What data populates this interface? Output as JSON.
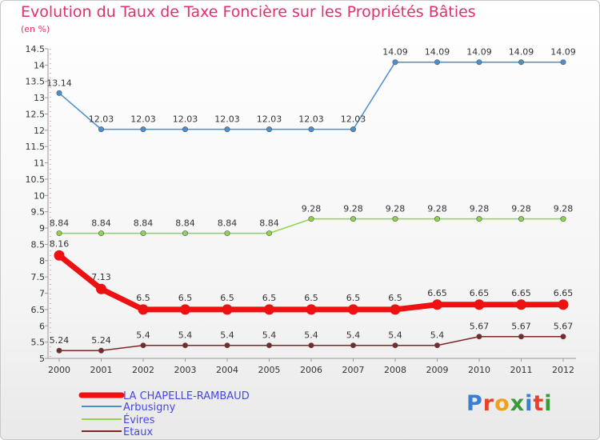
{
  "chart_data": {
    "type": "line",
    "title": "Evolution du Taux de Taxe Foncière sur les Propriétés Bâties",
    "ylabel": "(en %)",
    "xlabel": "",
    "ylim": [
      5,
      14.5
    ],
    "yticks": [
      "5",
      "5.5",
      "6",
      "6.5",
      "7",
      "7.5",
      "8",
      "8.5",
      "9",
      "9.5",
      "10",
      "10.5",
      "11",
      "11.5",
      "12",
      "12.5",
      "13",
      "13.5",
      "14",
      "14.5"
    ],
    "categories": [
      "2000",
      "2001",
      "2002",
      "2003",
      "2004",
      "2005",
      "2006",
      "2007",
      "2008",
      "2009",
      "2010",
      "2011",
      "2012"
    ],
    "series": [
      {
        "name": "Arbusigny",
        "color": "#4a8fd0",
        "values": [
          13.14,
          12.03,
          12.03,
          12.03,
          12.03,
          12.03,
          12.03,
          12.03,
          14.09,
          14.09,
          14.09,
          14.09,
          14.09
        ],
        "labels": [
          "13.14",
          "12.03",
          "12.03",
          "12.03",
          "12.03",
          "12.03",
          "12.03",
          "12.03",
          "14.09",
          "14.09",
          "14.09",
          "14.09",
          "14.09"
        ]
      },
      {
        "name": "Évires",
        "color": "#8fd44a",
        "values": [
          8.84,
          8.84,
          8.84,
          8.84,
          8.84,
          8.84,
          9.28,
          9.28,
          9.28,
          9.28,
          9.28,
          9.28,
          9.28
        ],
        "labels": [
          "8.84",
          "8.84",
          "8.84",
          "8.84",
          "8.84",
          "8.84",
          "9.28",
          "9.28",
          "9.28",
          "9.28",
          "9.28",
          "9.28",
          "9.28"
        ]
      },
      {
        "name": "LA CHAPELLE-RAMBAUD",
        "color": "#ee1111",
        "values": [
          8.16,
          7.13,
          6.5,
          6.5,
          6.5,
          6.5,
          6.5,
          6.5,
          6.5,
          6.65,
          6.65,
          6.65,
          6.65
        ],
        "labels": [
          "8.16",
          "7.13",
          "6.5",
          "6.5",
          "6.5",
          "6.5",
          "6.5",
          "6.5",
          "6.5",
          "6.65",
          "6.65",
          "6.65",
          "6.65"
        ]
      },
      {
        "name": "Etaux",
        "color": "#7a2828",
        "values": [
          5.24,
          5.24,
          5.4,
          5.4,
          5.4,
          5.4,
          5.4,
          5.4,
          5.4,
          5.4,
          5.67,
          5.67,
          5.67
        ],
        "labels": [
          "5.24",
          "5.24",
          "5.4",
          "5.4",
          "5.4",
          "5.4",
          "5.4",
          "5.4",
          "5.4",
          "5.4",
          "5.67",
          "5.67",
          "5.67"
        ]
      }
    ],
    "legend": [
      "LA CHAPELLE-RAMBAUD",
      "Arbusigny",
      "Évires",
      "Etaux"
    ],
    "legend_position": "bottom-left"
  },
  "logo": {
    "text": "Proxiti"
  }
}
